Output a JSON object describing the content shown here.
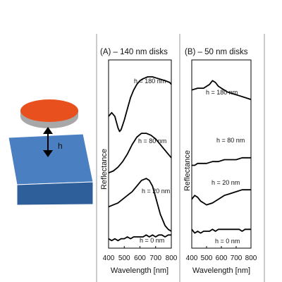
{
  "schematic": {
    "gap_label": "h",
    "disk_color": "#e8501e",
    "disk_rim_color": "#a8a8a8",
    "substrate_color": "#4a7fc1",
    "substrate_side_color": "#2f5f9a"
  },
  "chart_data": [
    {
      "type": "line",
      "title": "(A) – 140 nm disks",
      "xlabel": "Wavelength [nm]",
      "ylabel": "Reflectance",
      "xlim": [
        400,
        800
      ],
      "xticks": [
        "400",
        "500",
        "600",
        "700",
        "800"
      ],
      "y_ticks_shown": false,
      "grid": false,
      "series": [
        {
          "name": "h = 180 nm",
          "x": [
            400,
            420,
            440,
            460,
            470,
            480,
            500,
            520,
            540,
            560,
            580,
            600,
            620,
            650,
            680,
            720,
            760,
            790,
            800
          ],
          "y": [
            0.7,
            0.72,
            0.7,
            0.64,
            0.62,
            0.63,
            0.68,
            0.74,
            0.8,
            0.84,
            0.87,
            0.89,
            0.9,
            0.91,
            0.91,
            0.9,
            0.89,
            0.88,
            0.87
          ]
        },
        {
          "name": "h = 80 nm",
          "x": [
            400,
            430,
            460,
            490,
            520,
            550,
            580,
            610,
            640,
            670,
            700,
            730,
            760,
            790,
            800
          ],
          "y": [
            0.4,
            0.41,
            0.43,
            0.46,
            0.5,
            0.55,
            0.59,
            0.61,
            0.61,
            0.6,
            0.58,
            0.55,
            0.52,
            0.49,
            0.48
          ]
        },
        {
          "name": "h = 20 nm",
          "x": [
            400,
            430,
            460,
            490,
            520,
            550,
            580,
            610,
            640,
            660,
            680,
            700,
            730,
            760,
            780,
            800
          ],
          "y": [
            0.22,
            0.23,
            0.24,
            0.26,
            0.28,
            0.3,
            0.33,
            0.36,
            0.37,
            0.36,
            0.33,
            0.27,
            0.18,
            0.12,
            0.1,
            0.09
          ]
        },
        {
          "name": "h = 0 nm",
          "x": [
            400,
            420,
            440,
            460,
            480,
            500,
            520,
            540,
            560,
            580,
            600,
            620,
            640,
            660,
            680,
            700,
            720,
            740,
            760,
            780,
            800
          ],
          "y": [
            0.05,
            0.04,
            0.05,
            0.04,
            0.05,
            0.05,
            0.06,
            0.05,
            0.06,
            0.06,
            0.06,
            0.06,
            0.07,
            0.06,
            0.07,
            0.06,
            0.07,
            0.07,
            0.06,
            0.07,
            0.07
          ]
        }
      ],
      "annotations": [
        "h = 180 nm",
        "h = 80 nm",
        "h = 20 nm",
        "h = 0 nm"
      ]
    },
    {
      "type": "line",
      "title": "(B) – 50 nm disks",
      "xlabel": "Wavelength [nm]",
      "ylabel": "Reflectance",
      "xlim": [
        400,
        800
      ],
      "xticks": [
        "400",
        "500",
        "600",
        "700",
        "800"
      ],
      "y_ticks_shown": false,
      "grid": false,
      "series": [
        {
          "name": "h = 180 nm",
          "x": [
            400,
            440,
            480,
            520,
            540,
            560,
            580,
            600,
            640,
            680,
            720,
            760,
            800
          ],
          "y": [
            0.84,
            0.85,
            0.85,
            0.87,
            0.89,
            0.88,
            0.86,
            0.85,
            0.83,
            0.82,
            0.81,
            0.8,
            0.79
          ]
        },
        {
          "name": "h = 80 nm",
          "x": [
            400,
            420,
            440,
            460,
            480,
            500,
            540,
            580,
            620,
            660,
            700,
            740,
            780,
            800
          ],
          "y": [
            0.44,
            0.44,
            0.45,
            0.45,
            0.45,
            0.45,
            0.46,
            0.46,
            0.47,
            0.47,
            0.47,
            0.48,
            0.48,
            0.48
          ]
        },
        {
          "name": "h = 20 nm",
          "x": [
            400,
            420,
            440,
            460,
            480,
            500,
            540,
            580,
            620,
            660,
            700,
            740,
            780,
            800
          ],
          "y": [
            0.26,
            0.28,
            0.27,
            0.25,
            0.24,
            0.23,
            0.24,
            0.26,
            0.28,
            0.29,
            0.3,
            0.31,
            0.31,
            0.31
          ]
        },
        {
          "name": "h = 0 nm",
          "x": [
            400,
            420,
            440,
            460,
            480,
            500,
            520,
            540,
            560,
            580,
            600,
            620,
            640,
            660,
            680,
            700,
            720,
            740,
            760,
            780,
            800
          ],
          "y": [
            0.1,
            0.08,
            0.09,
            0.08,
            0.09,
            0.09,
            0.09,
            0.1,
            0.09,
            0.1,
            0.1,
            0.1,
            0.1,
            0.1,
            0.1,
            0.1,
            0.1,
            0.09,
            0.1,
            0.1,
            0.1
          ]
        }
      ],
      "annotations": [
        "h = 180 nm",
        "h = 80 nm",
        "h = 20 nm",
        "h = 0 nm"
      ]
    }
  ]
}
